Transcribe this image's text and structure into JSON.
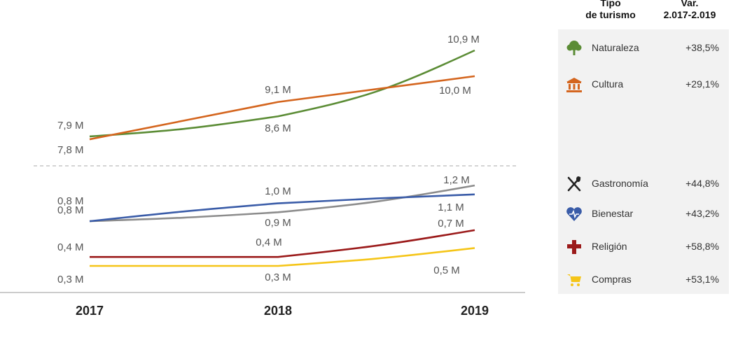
{
  "chart_data": {
    "type": "line",
    "categories": [
      "2017",
      "2018",
      "2019"
    ],
    "series": [
      {
        "name": "Naturaleza",
        "values": [
          7.9,
          8.6,
          10.9
        ],
        "color": "#5b8c35",
        "icon": "tree-icon",
        "variation": "+38,5%",
        "group": "top",
        "labels": [
          "7,9 M",
          "8,6 M",
          "10,9 M"
        ]
      },
      {
        "name": "Cultura",
        "values": [
          7.8,
          9.1,
          10.0
        ],
        "color": "#d4651e",
        "icon": "museum-icon",
        "variation": "+29,1%",
        "group": "top",
        "labels": [
          "7,8 M",
          "9,1 M",
          "10,0 M"
        ]
      },
      {
        "name": "Gastronomía",
        "values": [
          0.8,
          0.9,
          1.2
        ],
        "color": "#8c8c8c",
        "icon": "cutlery-icon",
        "variation": "+44,8%",
        "group": "bottom",
        "labels": [
          "0,8 M",
          "0,9 M",
          "1,2 M"
        ]
      },
      {
        "name": "Bienestar",
        "values": [
          0.8,
          1.0,
          1.1
        ],
        "color": "#3a5ca8",
        "icon": "heart-pulse-icon",
        "variation": "+43,2%",
        "group": "bottom",
        "labels": [
          "0,8 M",
          "1,0 M",
          "1,1 M"
        ]
      },
      {
        "name": "Religión",
        "values": [
          0.4,
          0.4,
          0.7
        ],
        "color": "#9b1a1a",
        "icon": "cross-icon",
        "variation": "+58,8%",
        "group": "bottom",
        "labels": [
          "0,4 M",
          "0,4 M",
          "0,7 M"
        ]
      },
      {
        "name": "Compras",
        "values": [
          0.3,
          0.3,
          0.5
        ],
        "color": "#f5c518",
        "icon": "cart-icon",
        "variation": "+53,1%",
        "group": "bottom",
        "labels": [
          "0,3 M",
          "0,3 M",
          "0,5 M"
        ]
      }
    ],
    "legend": {
      "header_type": "Tipo de turismo",
      "header_var": "Var. 2.017-2.019",
      "placement": "right"
    },
    "grid": false
  }
}
